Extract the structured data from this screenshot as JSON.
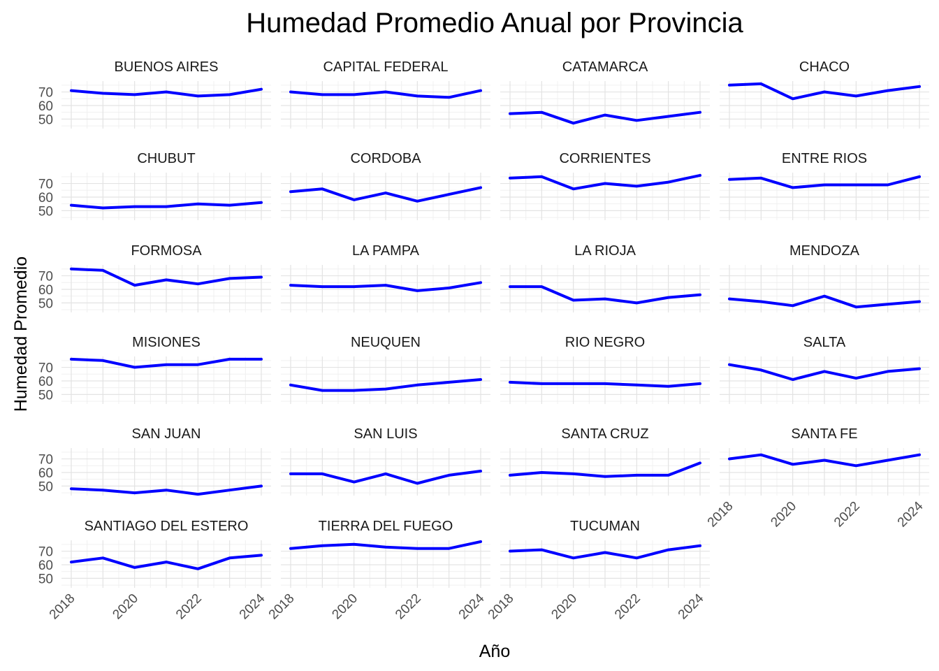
{
  "chart_data": {
    "type": "line",
    "title": "Humedad Promedio Anual por Provincia",
    "xlabel": "Año",
    "ylabel": "Humedad Promedio",
    "x": [
      2018,
      2019,
      2020,
      2021,
      2022,
      2023,
      2024
    ],
    "x_ticks": [
      "2018",
      "2020",
      "2022",
      "2024"
    ],
    "y_ticks": [
      "50",
      "60",
      "70"
    ],
    "ylim": [
      43,
      78
    ],
    "grid": true,
    "line_color": "#0000FF",
    "facets": [
      {
        "name": "BUENOS AIRES",
        "values": [
          71,
          69,
          68,
          70,
          67,
          68,
          72
        ]
      },
      {
        "name": "CAPITAL FEDERAL",
        "values": [
          70,
          68,
          68,
          70,
          67,
          66,
          71
        ]
      },
      {
        "name": "CATAMARCA",
        "values": [
          54,
          55,
          47,
          53,
          49,
          52,
          55
        ]
      },
      {
        "name": "CHACO",
        "values": [
          75,
          76,
          65,
          70,
          67,
          71,
          74
        ]
      },
      {
        "name": "CHUBUT",
        "values": [
          54,
          52,
          53,
          53,
          55,
          54,
          56
        ]
      },
      {
        "name": "CORDOBA",
        "values": [
          64,
          66,
          58,
          63,
          57,
          62,
          67
        ]
      },
      {
        "name": "CORRIENTES",
        "values": [
          74,
          75,
          66,
          70,
          68,
          71,
          76
        ]
      },
      {
        "name": "ENTRE RIOS",
        "values": [
          73,
          74,
          67,
          69,
          69,
          69,
          75
        ]
      },
      {
        "name": "FORMOSA",
        "values": [
          75,
          74,
          63,
          67,
          64,
          68,
          69
        ]
      },
      {
        "name": "LA PAMPA",
        "values": [
          63,
          62,
          62,
          63,
          59,
          61,
          65
        ]
      },
      {
        "name": "LA RIOJA",
        "values": [
          62,
          62,
          52,
          53,
          50,
          54,
          56
        ]
      },
      {
        "name": "MENDOZA",
        "values": [
          53,
          51,
          48,
          55,
          47,
          49,
          51
        ]
      },
      {
        "name": "MISIONES",
        "values": [
          76,
          75,
          70,
          72,
          72,
          76,
          76
        ]
      },
      {
        "name": "NEUQUEN",
        "values": [
          57,
          53,
          53,
          54,
          57,
          59,
          61
        ]
      },
      {
        "name": "RIO NEGRO",
        "values": [
          59,
          58,
          58,
          58,
          57,
          56,
          58
        ]
      },
      {
        "name": "SALTA",
        "values": [
          72,
          68,
          61,
          67,
          62,
          67,
          69
        ]
      },
      {
        "name": "SAN JUAN",
        "values": [
          48,
          47,
          45,
          47,
          44,
          47,
          50
        ]
      },
      {
        "name": "SAN LUIS",
        "values": [
          59,
          59,
          53,
          59,
          52,
          58,
          61
        ]
      },
      {
        "name": "SANTA CRUZ",
        "values": [
          58,
          60,
          59,
          57,
          58,
          58,
          67
        ]
      },
      {
        "name": "SANTA FE",
        "values": [
          70,
          73,
          66,
          69,
          65,
          69,
          73
        ]
      },
      {
        "name": "SANTIAGO DEL ESTERO",
        "values": [
          62,
          65,
          58,
          62,
          57,
          65,
          67
        ]
      },
      {
        "name": "TIERRA DEL FUEGO",
        "values": [
          72,
          74,
          75,
          73,
          72,
          72,
          77
        ]
      },
      {
        "name": "TUCUMAN",
        "values": [
          70,
          71,
          65,
          69,
          65,
          71,
          74
        ]
      }
    ]
  }
}
